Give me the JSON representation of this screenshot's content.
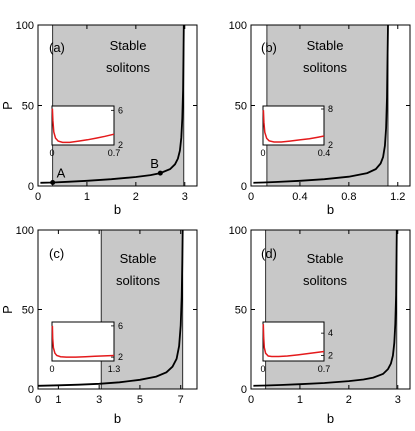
{
  "chart_data": [
    {
      "type": "line",
      "panel_label": "(a)",
      "region_text": [
        "Stable",
        "solitons"
      ],
      "xlabel": "b",
      "ylabel": "P",
      "xlim": [
        0,
        3.25
      ],
      "ylim": [
        0,
        100
      ],
      "xticks": [
        0,
        1,
        2,
        3
      ],
      "xtick_labels": [
        "0",
        "1",
        "2",
        "3"
      ],
      "yticks": [
        0,
        50,
        100
      ],
      "ytick_labels": [
        "0",
        "50",
        "100"
      ],
      "shaded_region": [
        0.3,
        2.98
      ],
      "curve": {
        "x": [
          0.05,
          0.3,
          0.6,
          1.0,
          1.5,
          2.0,
          2.3,
          2.5,
          2.7,
          2.8,
          2.86,
          2.9,
          2.93,
          2.95,
          2.965,
          2.975,
          2.98
        ],
        "y": [
          2.0,
          2.2,
          2.6,
          3.2,
          4.2,
          5.6,
          6.8,
          8.0,
          10.5,
          13.5,
          17,
          22,
          30,
          42,
          60,
          82,
          100
        ]
      },
      "points": [
        {
          "label": "A",
          "x": 0.3,
          "y": 2.2
        },
        {
          "label": "B",
          "x": 2.5,
          "y": 8.0
        }
      ],
      "inset": {
        "xlim": [
          0,
          0.7
        ],
        "ylim": [
          2,
          6.5
        ],
        "xtick_labels": [
          "0",
          "0.7"
        ],
        "ytick_labels": [
          "6",
          "2"
        ],
        "ytick_values": [
          6,
          2
        ],
        "curve": {
          "x": [
            0.005,
            0.01,
            0.02,
            0.04,
            0.07,
            0.12,
            0.2,
            0.3,
            0.4,
            0.5,
            0.6,
            0.7
          ],
          "y": [
            6.2,
            4.8,
            3.5,
            2.8,
            2.45,
            2.3,
            2.3,
            2.45,
            2.6,
            2.8,
            3.0,
            3.25
          ]
        }
      }
    },
    {
      "type": "line",
      "panel_label": "(b)",
      "region_text": [
        "Stable",
        "solitons"
      ],
      "xlabel": "b",
      "ylabel": "",
      "xlim": [
        0,
        1.3
      ],
      "ylim": [
        0,
        100
      ],
      "xticks": [
        0,
        0.4,
        0.8,
        1.2
      ],
      "xtick_labels": [
        "0",
        "0.4",
        "0.8",
        "1.2"
      ],
      "yticks": [
        0,
        50,
        100
      ],
      "ytick_labels": [
        "0",
        "50",
        "100"
      ],
      "shaded_region": [
        0.13,
        1.12
      ],
      "curve": {
        "x": [
          0.02,
          0.1,
          0.2,
          0.4,
          0.6,
          0.8,
          0.95,
          1.02,
          1.06,
          1.08,
          1.095,
          1.105,
          1.112,
          1.116,
          1.12
        ],
        "y": [
          2.0,
          2.2,
          2.5,
          3.2,
          4.2,
          5.8,
          8.0,
          10.5,
          14,
          18,
          25,
          36,
          55,
          78,
          100
        ]
      },
      "points": [],
      "inset": {
        "xlim": [
          0,
          0.5
        ],
        "ylim": [
          2,
          8.5
        ],
        "xtick_labels": [
          "0",
          "0.4"
        ],
        "ytick_labels": [
          "8",
          "2"
        ],
        "ytick_values": [
          8,
          2
        ],
        "curve": {
          "x": [
            0.003,
            0.007,
            0.015,
            0.03,
            0.05,
            0.09,
            0.15,
            0.22,
            0.3,
            0.38,
            0.45,
            0.5
          ],
          "y": [
            7.8,
            5.8,
            4.1,
            3.1,
            2.7,
            2.5,
            2.5,
            2.65,
            2.85,
            3.05,
            3.3,
            3.5
          ]
        }
      }
    },
    {
      "type": "line",
      "panel_label": "(c)",
      "region_text": [
        "Stable",
        "solitons"
      ],
      "xlabel": "b",
      "ylabel": "P",
      "xlim": [
        0,
        7.8
      ],
      "ylim": [
        0,
        100
      ],
      "xticks": [
        0,
        1,
        3,
        5,
        7
      ],
      "xtick_labels": [
        "0",
        "1",
        "3",
        "5",
        "7"
      ],
      "yticks": [
        0,
        50,
        100
      ],
      "ytick_labels": [
        "0",
        "50",
        "100"
      ],
      "shaded_region": [
        3.1,
        7.1
      ],
      "curve": {
        "x": [
          0.0,
          1.0,
          2.0,
          3.0,
          4.0,
          5.0,
          5.8,
          6.3,
          6.6,
          6.8,
          6.92,
          7.0,
          7.05,
          7.08,
          7.1
        ],
        "y": [
          2.0,
          2.3,
          2.7,
          3.3,
          4.2,
          5.8,
          7.8,
          10.5,
          14,
          19,
          27,
          40,
          58,
          80,
          100
        ]
      },
      "points": [],
      "inset": {
        "xlim": [
          0,
          1.3
        ],
        "ylim": [
          1.5,
          6.5
        ],
        "xtick_labels": [
          "0",
          "1.3"
        ],
        "ytick_labels": [
          "6",
          "2"
        ],
        "ytick_values": [
          6,
          2
        ],
        "curve": {
          "x": [
            0.008,
            0.015,
            0.03,
            0.06,
            0.1,
            0.18,
            0.3,
            0.5,
            0.7,
            0.9,
            1.1,
            1.3
          ],
          "y": [
            6.0,
            4.4,
            3.2,
            2.5,
            2.2,
            2.05,
            2.0,
            2.0,
            2.05,
            2.1,
            2.15,
            2.2
          ]
        }
      }
    },
    {
      "type": "line",
      "panel_label": "(d)",
      "region_text": [
        "Stable",
        "solitons"
      ],
      "xlabel": "b",
      "ylabel": "",
      "xlim": [
        0,
        3.25
      ],
      "ylim": [
        0,
        100
      ],
      "xticks": [
        0,
        1,
        2,
        3
      ],
      "xtick_labels": [
        "0",
        "1",
        "2",
        "3"
      ],
      "yticks": [
        0,
        50,
        100
      ],
      "ytick_labels": [
        "0",
        "50",
        "100"
      ],
      "shaded_region": [
        0.3,
        2.98
      ],
      "curve": {
        "x": [
          0.05,
          0.3,
          0.6,
          1.0,
          1.5,
          2.0,
          2.3,
          2.5,
          2.7,
          2.8,
          2.86,
          2.9,
          2.93,
          2.95,
          2.965,
          2.975,
          2.98
        ],
        "y": [
          2.0,
          2.2,
          2.5,
          3.0,
          3.8,
          5.0,
          6.0,
          7.2,
          9.5,
          12.5,
          16,
          21,
          29,
          41,
          59,
          82,
          100
        ]
      },
      "points": [],
      "inset": {
        "xlim": [
          0,
          0.7
        ],
        "ylim": [
          1.5,
          5
        ],
        "xtick_labels": [
          "0",
          "0.7"
        ],
        "ytick_labels": [
          "4",
          "2"
        ],
        "ytick_values": [
          4,
          2
        ],
        "curve": {
          "x": [
            0.004,
            0.008,
            0.015,
            0.03,
            0.06,
            0.1,
            0.18,
            0.28,
            0.4,
            0.5,
            0.6,
            0.7
          ],
          "y": [
            4.8,
            3.6,
            2.7,
            2.2,
            1.95,
            1.9,
            1.9,
            1.95,
            2.05,
            2.15,
            2.25,
            2.35
          ]
        }
      }
    }
  ],
  "colors": {
    "shade": "#c8c8c8",
    "curve": "#000000",
    "inset_curve": "#e41a1c",
    "axis": "#000000"
  }
}
